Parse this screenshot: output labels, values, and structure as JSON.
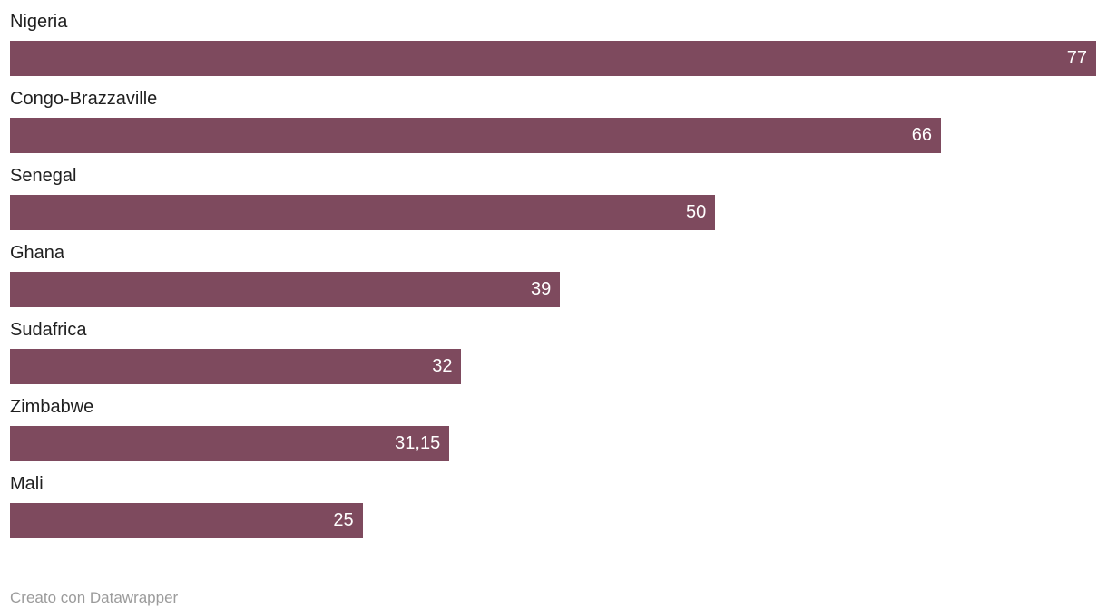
{
  "chart_data": {
    "type": "bar",
    "orientation": "horizontal",
    "title": "",
    "xlabel": "",
    "ylabel": "",
    "grid": false,
    "legend": "none",
    "xlim": [
      0,
      77
    ],
    "categories": [
      "Nigeria",
      "Congo-Brazzaville",
      "Senegal",
      "Ghana",
      "Sudafrica",
      "Zimbabwe",
      "Mali"
    ],
    "values": [
      77,
      66,
      50,
      39,
      32,
      31.15,
      25
    ],
    "value_labels": [
      "77",
      "66",
      "50",
      "39",
      "32",
      "31,15",
      "25"
    ],
    "bar_color": "#7E4A5E",
    "value_label_color": "#ffffff",
    "category_label_color": "#1f1f1f"
  },
  "footer": {
    "attribution": "Creato con Datawrapper",
    "color": "#9b9b9b"
  }
}
